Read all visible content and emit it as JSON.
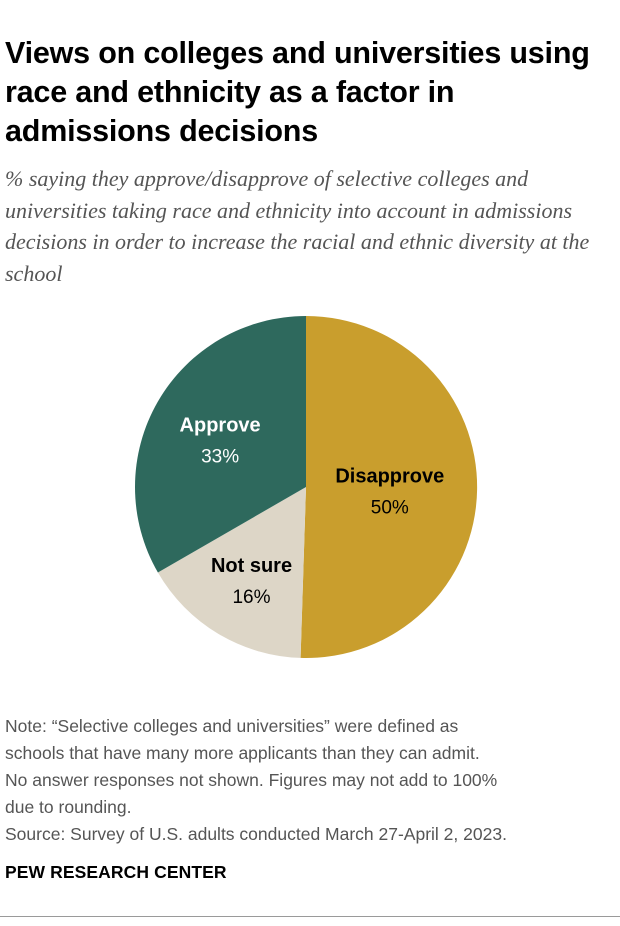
{
  "header": {
    "title": "Views on colleges and universities using race and ethnicity as a factor in admissions decisions",
    "subtitle": "% saying they approve/disapprove of selective colleges and universities taking race and ethnicity into account in admissions decisions in order to increase the racial and ethnic diversity at the school"
  },
  "chart_data": {
    "type": "pie",
    "title": "Views on colleges and universities using race and ethnicity as a factor in admissions decisions",
    "start": "12 o'clock, clockwise",
    "slices": [
      {
        "label": "Disapprove",
        "value": 50,
        "display": "50%",
        "color": "#C99E2D",
        "text_color": "#000000"
      },
      {
        "label": "Not sure",
        "value": 16,
        "display": "16%",
        "color": "#DDD6C7",
        "text_color": "#000000"
      },
      {
        "label": "Approve",
        "value": 33,
        "display": "33%",
        "color": "#2E695D",
        "text_color": "#FFFFFF"
      }
    ]
  },
  "footer": {
    "note_lines": [
      "Note: “Selective colleges and universities” were defined as",
      "schools that have many more applicants than they can admit.",
      "No answer responses not shown. Figures may not add to 100%",
      "due to rounding."
    ],
    "source": "Source: Survey of U.S. adults conducted March 27-April 2, 2023.",
    "brand": "PEW RESEARCH CENTER"
  }
}
